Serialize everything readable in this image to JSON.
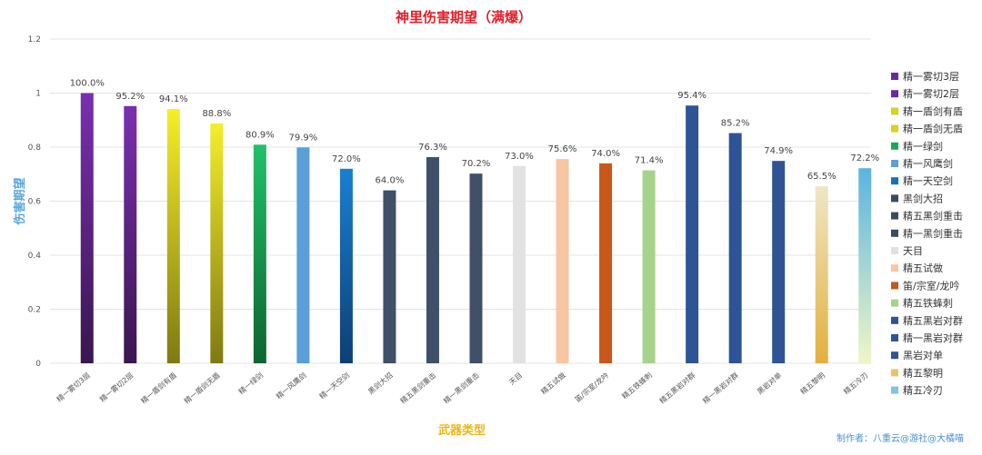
{
  "credit": "制作者：八重云@游社@大橘喵",
  "chart_data": {
    "type": "bar",
    "title": "神里伤害期望（满爆）",
    "xlabel": "武器类型",
    "ylabel": "伤害期望",
    "ylim": [
      0,
      1.2
    ],
    "yticks": [
      "0",
      "0.2",
      "0.4",
      "0.6",
      "0.8",
      "1",
      "1.2"
    ],
    "grid": true,
    "legend_position": "right",
    "categories": [
      "精一雾切3层",
      "精一雾切2层",
      "精一盾剑有盾",
      "精一盾剑无盾",
      "精一绿剑",
      "精一风鹰剑",
      "精一天空剑",
      "黑剑大招",
      "精五黑剑重击",
      "精一黑剑重击",
      "天目",
      "精五试做",
      "笛/宗室/龙吟",
      "精五铁蜂刺",
      "精五黑岩对群",
      "精一黑岩对群",
      "黑岩对单",
      "精五黎明",
      "精五冷刃"
    ],
    "values": [
      1.0,
      0.952,
      0.941,
      0.888,
      0.809,
      0.799,
      0.72,
      0.64,
      0.763,
      0.702,
      0.73,
      0.756,
      0.74,
      0.714,
      0.954,
      0.852,
      0.749,
      0.655,
      0.722
    ],
    "value_labels": [
      "100.0%",
      "95.2%",
      "94.1%",
      "88.8%",
      "80.9%",
      "79.9%",
      "72.0%",
      "64.0%",
      "76.3%",
      "70.2%",
      "73.0%",
      "75.6%",
      "74.0%",
      "71.4%",
      "95.4%",
      "85.2%",
      "74.9%",
      "65.5%",
      "72.2%"
    ],
    "colors": [
      [
        "#7a2fb0",
        "#3a1650"
      ],
      [
        "#7a2fb0",
        "#3a1650"
      ],
      [
        "#f4ee2a",
        "#7f7a12"
      ],
      [
        "#f4ee2a",
        "#7f7a12"
      ],
      [
        "#22c06a",
        "#0d6530"
      ],
      [
        "#5b9fd8",
        "#5b9fd8"
      ],
      [
        "#1a7fd0",
        "#0d3f75"
      ],
      [
        "#3f5068",
        "#3f5068"
      ],
      [
        "#3f5068",
        "#3f5068"
      ],
      [
        "#3f5068",
        "#3f5068"
      ],
      [
        "#e2e2e2",
        "#e2e2e2"
      ],
      [
        "#f7c6a2",
        "#f7c6a2"
      ],
      [
        "#c8571a",
        "#c8571a"
      ],
      [
        "#a6d38c",
        "#a6d38c"
      ],
      [
        "#2f5495",
        "#2f5495"
      ],
      [
        "#2f5495",
        "#2f5495"
      ],
      [
        "#2f5495",
        "#2f5495"
      ],
      [
        "#efe6c6",
        "#e2b03e"
      ],
      [
        "#5ab4e0",
        "#f0f6c8"
      ]
    ],
    "legend_colors": [
      "#6a2a9c",
      "#6a2a9c",
      "#d8d21e",
      "#d8d21e",
      "#1aa858",
      "#5b9fd8",
      "#1a6fb8",
      "#3a4a60",
      "#3a4a60",
      "#3a4a60",
      "#e2e2e2",
      "#f7c6a2",
      "#c8571a",
      "#a6d38c",
      "#2f5495",
      "#2f5495",
      "#2f5495",
      "#e8c56a",
      "#7ec6e0"
    ]
  }
}
